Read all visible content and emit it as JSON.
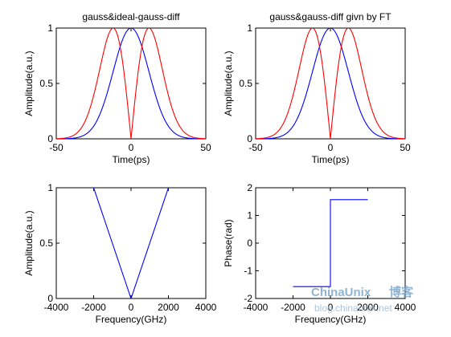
{
  "colors": {
    "blue": "#0000ff",
    "red": "#ff0000",
    "frame": "#000000",
    "background": "#ffffff"
  },
  "watermark": {
    "brand": "ChinaUnix",
    "brand_cn": "博客",
    "url": "blog.chinaunix.net"
  },
  "chart_data": [
    {
      "type": "line",
      "title": "gauss&ideal-gauss-diff",
      "xlabel": "Time(ps)",
      "ylabel": "Amplitude(a.u.)",
      "xlim": [
        -50,
        50
      ],
      "ylim": [
        0,
        1
      ],
      "xticks": [
        -50,
        0,
        50
      ],
      "yticks": [
        0,
        0.5,
        1
      ],
      "grid": false,
      "series": [
        {
          "color": "#0000ff",
          "kind": "gaussian",
          "center": 0,
          "sigma": 12,
          "amplitude": 1,
          "range": [
            -50,
            50
          ]
        },
        {
          "color": "#ff0000",
          "kind": "gaussian-derivative",
          "center": 0,
          "sigma": 12,
          "amplitude": 1,
          "range": [
            -50,
            50
          ]
        }
      ]
    },
    {
      "type": "line",
      "title": "gauss&gauss-diff givn by FT",
      "xlabel": "Time(ps)",
      "ylabel": "Amplitude(a.u.)",
      "xlim": [
        -50,
        50
      ],
      "ylim": [
        0,
        1
      ],
      "xticks": [
        -50,
        0,
        50
      ],
      "yticks": [
        0,
        0.5,
        1
      ],
      "grid": false,
      "series": [
        {
          "color": "#0000ff",
          "kind": "gaussian",
          "center": 0,
          "sigma": 12,
          "amplitude": 1,
          "range": [
            -50,
            50
          ]
        },
        {
          "color": "#ff0000",
          "kind": "gaussian-derivative",
          "center": 0,
          "sigma": 12,
          "amplitude": 1,
          "range": [
            -50,
            50
          ]
        }
      ]
    },
    {
      "type": "line",
      "title": "",
      "xlabel": "Frequency(GHz)",
      "ylabel": "Amplitude(a.u.)",
      "xlim": [
        -4000,
        4000
      ],
      "ylim": [
        0,
        1
      ],
      "xticks": [
        -4000,
        -2000,
        0,
        2000,
        4000
      ],
      "yticks": [
        0,
        0.5,
        1
      ],
      "grid": false,
      "series": [
        {
          "color": "#0000ff",
          "kind": "points",
          "x": [
            -2000,
            0,
            2000
          ],
          "y": [
            1,
            0,
            1
          ]
        }
      ]
    },
    {
      "type": "line",
      "title": "",
      "xlabel": "Frequency(GHz)",
      "ylabel": "Phase(rad)",
      "xlim": [
        -4000,
        4000
      ],
      "ylim": [
        -2,
        2
      ],
      "xticks": [
        -4000,
        -2000,
        0,
        2000,
        4000
      ],
      "yticks": [
        -2,
        -1,
        0,
        1,
        2
      ],
      "grid": false,
      "series": [
        {
          "color": "#0000ff",
          "kind": "points",
          "x": [
            -2000,
            0,
            0,
            2000
          ],
          "y": [
            -1.5708,
            -1.5708,
            1.5708,
            1.5708
          ]
        }
      ]
    }
  ]
}
